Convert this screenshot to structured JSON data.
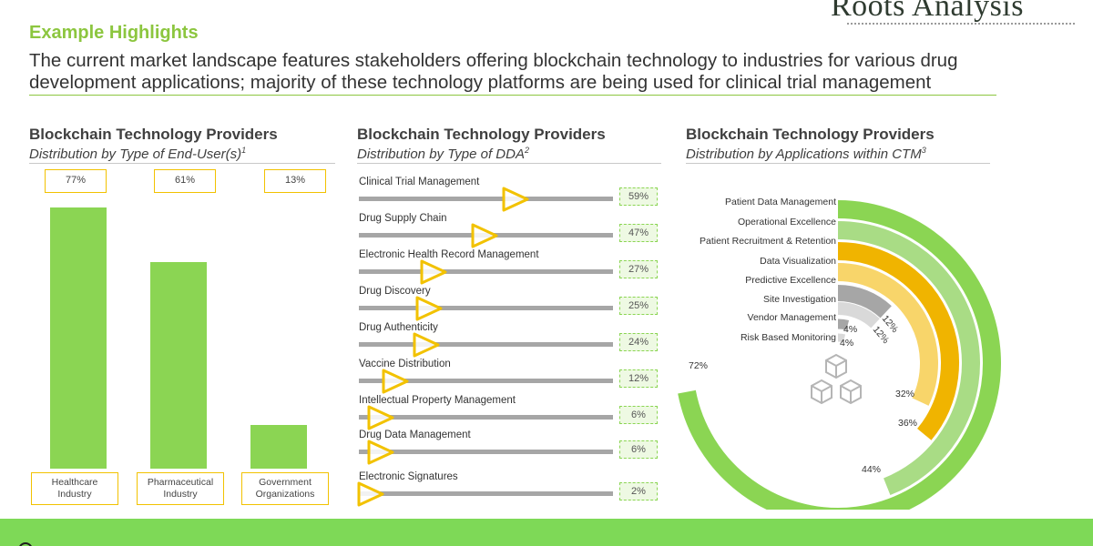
{
  "logo": {
    "text": "Roots Analysis"
  },
  "header": {
    "eyebrow": "Example Highlights",
    "headline": "The current market landscape features stakeholders offering blockchain technology to industries for various drug development applications; majority of these technology platforms are being used for clinical trial management"
  },
  "colors": {
    "accent_green": "#8cc63f",
    "bar_green": "#8bd553",
    "box_yellow": "#f2c200",
    "light_green": "#a9dc85",
    "orange": "#f0b400",
    "light_orange": "#f8d56a",
    "gray": "#a6a6a6",
    "light_gray": "#d9d9d9",
    "footer_green": "#7ed957"
  },
  "panels": [
    {
      "title": "Blockchain Technology Providers",
      "subtitle": "Distribution by Type of End-User(s)",
      "sup": "1"
    },
    {
      "title": "Blockchain Technology Providers",
      "subtitle": "Distribution by Type of DDA",
      "sup": "2"
    },
    {
      "title": "Blockchain Technology Providers",
      "subtitle": "Distribution by Applications within CTM",
      "sup": "3"
    }
  ],
  "chart_data": [
    {
      "type": "bar",
      "categories": [
        "Healthcare\nIndustry",
        "Pharmaceutical\nIndustry",
        "Government\nOrganizations"
      ],
      "values": [
        77,
        61,
        13
      ],
      "value_labels": [
        "77%",
        "61%",
        "13%"
      ],
      "ylim": [
        0,
        77
      ]
    },
    {
      "type": "bar",
      "orientation": "horizontal-slider",
      "categories": [
        "Clinical Trial Management",
        "Drug Supply Chain",
        "Electronic Health Record Management",
        "Drug Discovery",
        "Drug Authenticity",
        "Vaccine Distribution",
        "Intellectual Property Management",
        "Drug Data Management",
        "Electronic Signatures"
      ],
      "values": [
        59,
        47,
        27,
        25,
        24,
        12,
        6,
        6,
        2
      ],
      "value_labels": [
        "59%",
        "47%",
        "27%",
        "25%",
        "24%",
        "12%",
        "6%",
        "6%",
        "2%"
      ],
      "xlim": [
        0,
        100
      ]
    },
    {
      "type": "radial-bar",
      "categories": [
        "Patient Data Management",
        "Operational Excellence",
        "Patient Recruitment & Retention",
        "Data Visualization",
        "Predictive Excellence",
        "Site Investigation",
        "Vendor Management",
        "Risk Based Monitoring"
      ],
      "values": [
        72,
        44,
        36,
        32,
        12,
        12,
        4,
        4
      ],
      "value_labels": [
        "72%",
        "44%",
        "36%",
        "32%",
        "12%",
        "12%",
        "4%",
        "4%"
      ],
      "colors": [
        "#8bd553",
        "#a9dc85",
        "#f0b400",
        "#f8d56a",
        "#a6a6a6",
        "#d9d9d9",
        "#a6a6a6",
        "#d9d9d9"
      ]
    }
  ]
}
